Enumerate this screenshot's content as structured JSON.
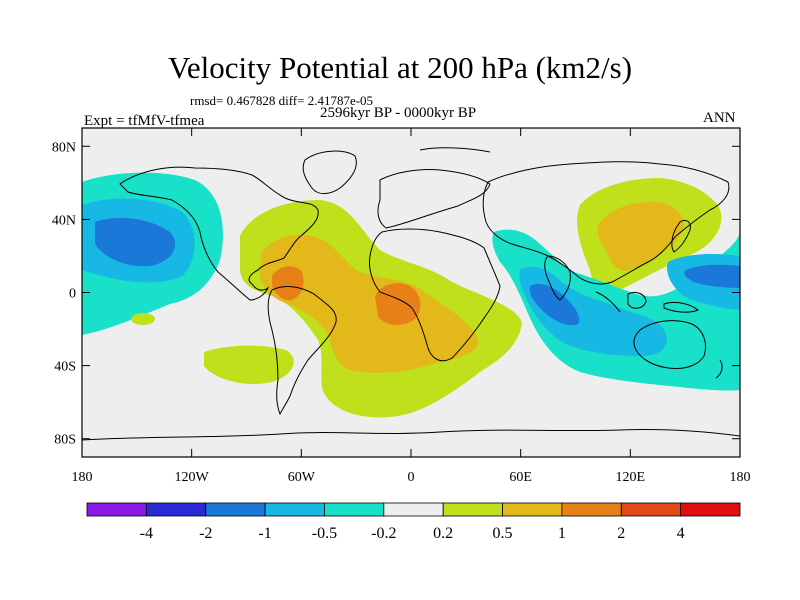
{
  "title": "Velocity Potential at 200 hPa (km2/s)",
  "stats_line": "rmsd= 0.467828 diff= 2.41787e-05",
  "experiment": "Expt = tfMfV-tfmea",
  "period": "2596kyr BP - 0000kyr BP",
  "season": "ANN",
  "lat_ticks": [
    {
      "value": 80,
      "label": "80N"
    },
    {
      "value": 40,
      "label": "40N"
    },
    {
      "value": 0,
      "label": "0"
    },
    {
      "value": -40,
      "label": "40S"
    },
    {
      "value": -80,
      "label": "80S"
    }
  ],
  "lon_ticks": [
    {
      "value": -180,
      "label": "180"
    },
    {
      "value": -120,
      "label": "120W"
    },
    {
      "value": -60,
      "label": "60W"
    },
    {
      "value": 0,
      "label": "0"
    },
    {
      "value": 60,
      "label": "60E"
    },
    {
      "value": 120,
      "label": "120E"
    },
    {
      "value": 180,
      "label": "180"
    }
  ],
  "colorbar": {
    "levels": [
      "-4",
      "-2",
      "-1",
      "-0.5",
      "-0.2",
      "0.2",
      "0.5",
      "1",
      "2",
      "4"
    ],
    "colors": [
      "#8a19e6",
      "#2a2ad6",
      "#1a78d8",
      "#17b8e3",
      "#19e0c8",
      "#eeeeee",
      "#bfe01a",
      "#e3b81a",
      "#e88018",
      "#e04a18",
      "#e01010"
    ]
  },
  "colors": {
    "land_outline": "#000000",
    "background": "#eeeeee"
  }
}
